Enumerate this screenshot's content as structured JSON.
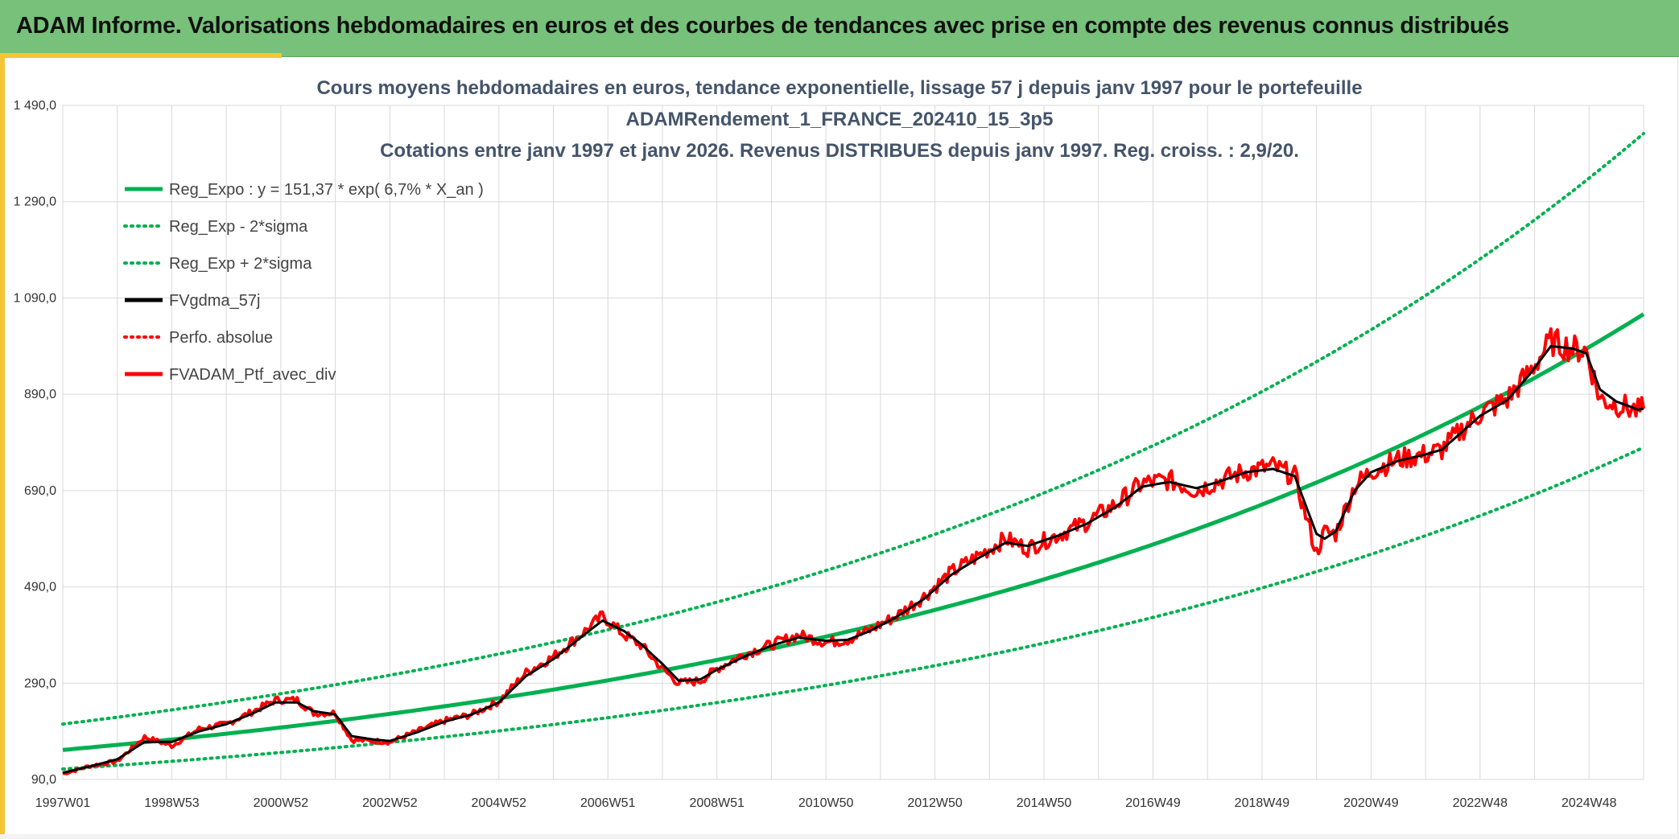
{
  "header": {
    "title": "ADAM Informe. Valorisations hebdomadaires en euros et des courbes de tendances avec prise en compte des revenus connus distribués"
  },
  "colors": {
    "banner": "#77c17a",
    "accent": "#f6c533",
    "regression": "#00b050",
    "price": "#ff0000",
    "smooth": "#000000",
    "grid": "#d9d9d9"
  },
  "chart_data": {
    "type": "line",
    "title_lines": [
      "Cours moyens hebdomadaires en euros, tendance exponentielle, lissage 57 j depuis janv 1997 pour le portefeuille",
      "ADAMRendement_1_FRANCE_202410_15_3p5",
      "Cotations entre janv 1997 et janv 2026. Revenus DISTRIBUES depuis janv 1997. Reg. croiss. : 2,9/20."
    ],
    "x_ticks": [
      "1997W01",
      "1998W53",
      "2000W52",
      "2002W52",
      "2004W52",
      "2006W51",
      "2008W51",
      "2010W50",
      "2012W50",
      "2014W50",
      "2016W49",
      "2018W49",
      "2020W49",
      "2022W48",
      "2024W48"
    ],
    "x_range": [
      1997.0,
      2026.0
    ],
    "y_ticks": [
      "90,0",
      "290,0",
      "490,0",
      "690,0",
      "890,0",
      "1 090,0",
      "1 290,0",
      "1 490,0"
    ],
    "y_range": [
      90,
      1490
    ],
    "grid": true,
    "legend_position": "top-left",
    "legend": [
      {
        "label": "Reg_Expo : y = 151,37 * exp( 6,7% *  X_an )",
        "color": "#00b050",
        "style": "solid"
      },
      {
        "label": "Reg_Exp - 2*sigma",
        "color": "#00b050",
        "style": "dotted"
      },
      {
        "label": "Reg_Exp + 2*sigma",
        "color": "#00b050",
        "style": "dotted"
      },
      {
        "label": "FVgdma_57j",
        "color": "#000000",
        "style": "solid"
      },
      {
        "label": "Perfo. absolue",
        "color": "#ff0000",
        "style": "dotted"
      },
      {
        "label": "FVADAM_Ptf_avec_div",
        "color": "#ff0000",
        "style": "solid"
      }
    ],
    "regression": {
      "a": 151.37,
      "rate": 0.067,
      "start_year": 1997.0
    },
    "band_lower_factor": 0.738,
    "band_upper_factor": 1.355,
    "series": [
      {
        "name": "FVADAM_Ptf_avec_div",
        "x": [
          1997.0,
          1997.5,
          1998.0,
          1998.5,
          1999.0,
          1999.5,
          2000.0,
          2000.5,
          2000.9,
          2001.3,
          2001.6,
          2002.0,
          2002.3,
          2002.7,
          2003.0,
          2003.5,
          2004.0,
          2004.5,
          2005.0,
          2005.5,
          2006.0,
          2006.5,
          2006.9,
          2007.3,
          2007.6,
          2008.0,
          2008.3,
          2008.7,
          2009.0,
          2009.5,
          2010.0,
          2010.5,
          2011.0,
          2011.4,
          2011.8,
          2012.3,
          2012.8,
          2013.3,
          2013.8,
          2014.3,
          2014.7,
          2015.3,
          2015.8,
          2016.3,
          2016.8,
          2017.3,
          2017.8,
          2018.2,
          2018.7,
          2019.2,
          2019.6,
          2020.0,
          2020.15,
          2020.35,
          2020.7,
          2021.0,
          2021.5,
          2022.0,
          2022.3,
          2022.7,
          2023.0,
          2023.5,
          2023.9,
          2024.3,
          2024.7,
          2024.95,
          2025.2,
          2025.5,
          2025.9,
          2026.0
        ],
        "y": [
          102,
          118,
          128,
          178,
          160,
          195,
          205,
          232,
          255,
          255,
          228,
          228,
          172,
          170,
          168,
          190,
          212,
          225,
          252,
          312,
          345,
          390,
          430,
          390,
          370,
          320,
          290,
          295,
          320,
          350,
          370,
          390,
          375,
          380,
          400,
          430,
          470,
          520,
          555,
          590,
          570,
          600,
          625,
          660,
          705,
          712,
          690,
          710,
          730,
          740,
          720,
          560,
          605,
          600,
          700,
          730,
          755,
          765,
          775,
          820,
          850,
          880,
          935,
          1000,
          985,
          980,
          880,
          870,
          855,
          860
        ]
      },
      {
        "name": "FVgdma_57j",
        "x": [
          1997.0,
          1997.5,
          1998.0,
          1998.5,
          1999.0,
          1999.5,
          2000.0,
          2000.5,
          2000.9,
          2001.3,
          2001.6,
          2002.0,
          2002.3,
          2002.7,
          2003.0,
          2003.5,
          2004.0,
          2004.5,
          2005.0,
          2005.5,
          2006.0,
          2006.5,
          2006.9,
          2007.3,
          2007.6,
          2008.0,
          2008.3,
          2008.7,
          2009.0,
          2009.5,
          2010.0,
          2010.5,
          2011.0,
          2011.4,
          2011.8,
          2012.3,
          2012.8,
          2013.3,
          2013.8,
          2014.3,
          2014.7,
          2015.3,
          2015.8,
          2016.3,
          2016.8,
          2017.3,
          2017.8,
          2018.2,
          2018.7,
          2019.2,
          2019.6,
          2020.0,
          2020.15,
          2020.35,
          2020.7,
          2021.0,
          2021.5,
          2022.0,
          2022.3,
          2022.7,
          2023.0,
          2023.5,
          2023.9,
          2024.3,
          2024.7,
          2024.95,
          2025.2,
          2025.5,
          2025.9,
          2026.0
        ],
        "y": [
          104,
          117,
          132,
          168,
          168,
          190,
          205,
          228,
          250,
          250,
          232,
          225,
          180,
          173,
          170,
          188,
          210,
          225,
          250,
          305,
          340,
          385,
          420,
          398,
          372,
          330,
          295,
          298,
          318,
          345,
          368,
          385,
          378,
          380,
          398,
          428,
          465,
          515,
          550,
          582,
          575,
          598,
          622,
          655,
          698,
          708,
          695,
          708,
          728,
          735,
          720,
          600,
          590,
          605,
          690,
          728,
          752,
          765,
          775,
          815,
          845,
          878,
          930,
          990,
          985,
          975,
          900,
          875,
          858,
          860
        ]
      }
    ]
  }
}
